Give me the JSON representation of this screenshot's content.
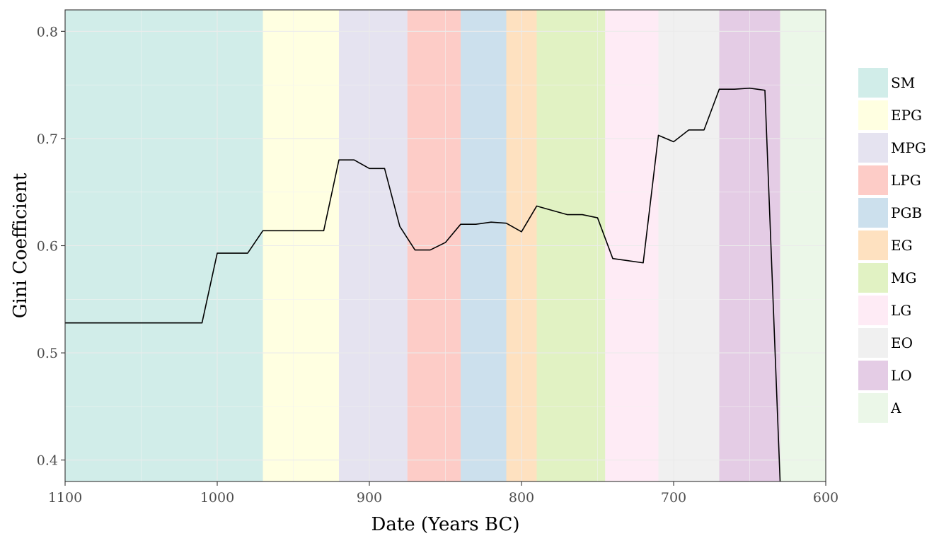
{
  "chart_data": {
    "type": "line",
    "xlabel": "Date (Years BC)",
    "ylabel": "Gini Coefficient",
    "x_axis": {
      "range": [
        1100,
        600
      ],
      "reversed": true,
      "ticks": [
        1100,
        1000,
        900,
        800,
        700,
        600
      ],
      "tick_labels": [
        "1100",
        "1000",
        "900",
        "800",
        "700",
        "600"
      ]
    },
    "y_axis": {
      "range": [
        0.38,
        0.82
      ],
      "ticks": [
        0.4,
        0.5,
        0.6,
        0.7,
        0.8
      ],
      "tick_labels": [
        "0.4",
        "0.5",
        "0.6",
        "0.7",
        "0.8"
      ]
    },
    "grid": true,
    "legend_position": "right",
    "periods": [
      {
        "label": "SM",
        "start": 1100,
        "end": 970,
        "color": "#8dd3c7"
      },
      {
        "label": "EPG",
        "start": 970,
        "end": 920,
        "color": "#ffffb3"
      },
      {
        "label": "MPG",
        "start": 920,
        "end": 875,
        "color": "#bebada"
      },
      {
        "label": "LPG",
        "start": 875,
        "end": 840,
        "color": "#fb8072"
      },
      {
        "label": "PGB",
        "start": 840,
        "end": 810,
        "color": "#80b1d3"
      },
      {
        "label": "EG",
        "start": 810,
        "end": 790,
        "color": "#fdb462"
      },
      {
        "label": "MG",
        "start": 790,
        "end": 745,
        "color": "#b3de69"
      },
      {
        "label": "LG",
        "start": 745,
        "end": 710,
        "color": "#fccde5"
      },
      {
        "label": "EO",
        "start": 710,
        "end": 670,
        "color": "#d9d9d9"
      },
      {
        "label": "LO",
        "start": 670,
        "end": 630,
        "color": "#bc80bd"
      },
      {
        "label": "A",
        "start": 630,
        "end": 600,
        "color": "#ccebc5"
      }
    ],
    "series": [
      {
        "color": "#000000",
        "points": [
          [
            1100,
            0.528
          ],
          [
            1010,
            0.528
          ],
          [
            1000,
            0.593
          ],
          [
            980,
            0.593
          ],
          [
            970,
            0.614
          ],
          [
            930,
            0.614
          ],
          [
            920,
            0.68
          ],
          [
            910,
            0.68
          ],
          [
            900,
            0.672
          ],
          [
            890,
            0.672
          ],
          [
            880,
            0.618
          ],
          [
            870,
            0.596
          ],
          [
            860,
            0.596
          ],
          [
            850,
            0.603
          ],
          [
            840,
            0.62
          ],
          [
            830,
            0.62
          ],
          [
            820,
            0.622
          ],
          [
            810,
            0.621
          ],
          [
            800,
            0.613
          ],
          [
            790,
            0.637
          ],
          [
            780,
            0.633
          ],
          [
            770,
            0.629
          ],
          [
            760,
            0.629
          ],
          [
            750,
            0.626
          ],
          [
            740,
            0.588
          ],
          [
            730,
            0.586
          ],
          [
            720,
            0.584
          ],
          [
            710,
            0.703
          ],
          [
            700,
            0.697
          ],
          [
            690,
            0.708
          ],
          [
            680,
            0.708
          ],
          [
            670,
            0.746
          ],
          [
            660,
            0.746
          ],
          [
            650,
            0.747
          ],
          [
            640,
            0.745
          ],
          [
            630,
            0.38
          ]
        ]
      }
    ]
  }
}
